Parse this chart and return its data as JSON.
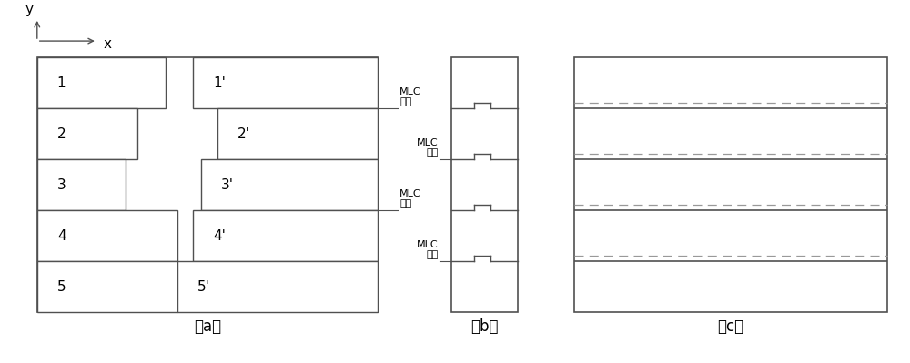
{
  "bg_color": "#ffffff",
  "line_color": "#505050",
  "dashed_color": "#999999",
  "label_a": "（a）",
  "label_b": "（b）",
  "label_c": "（c）",
  "axis_label_x": "x",
  "axis_label_y": "y",
  "mlc_label1": "MLC\n叶片",
  "mlc_label2": "MLC\n叶片",
  "panel_a_left_labels": [
    "1",
    "2",
    "3",
    "4",
    "5"
  ],
  "panel_a_right_labels": [
    "1'",
    "2'",
    "3'",
    "4'",
    "5'"
  ],
  "left_widths": [
    3.2,
    2.5,
    2.2,
    3.5,
    3.5
  ],
  "right_left_edges": [
    4.6,
    5.2,
    4.8,
    4.6,
    4.2
  ]
}
